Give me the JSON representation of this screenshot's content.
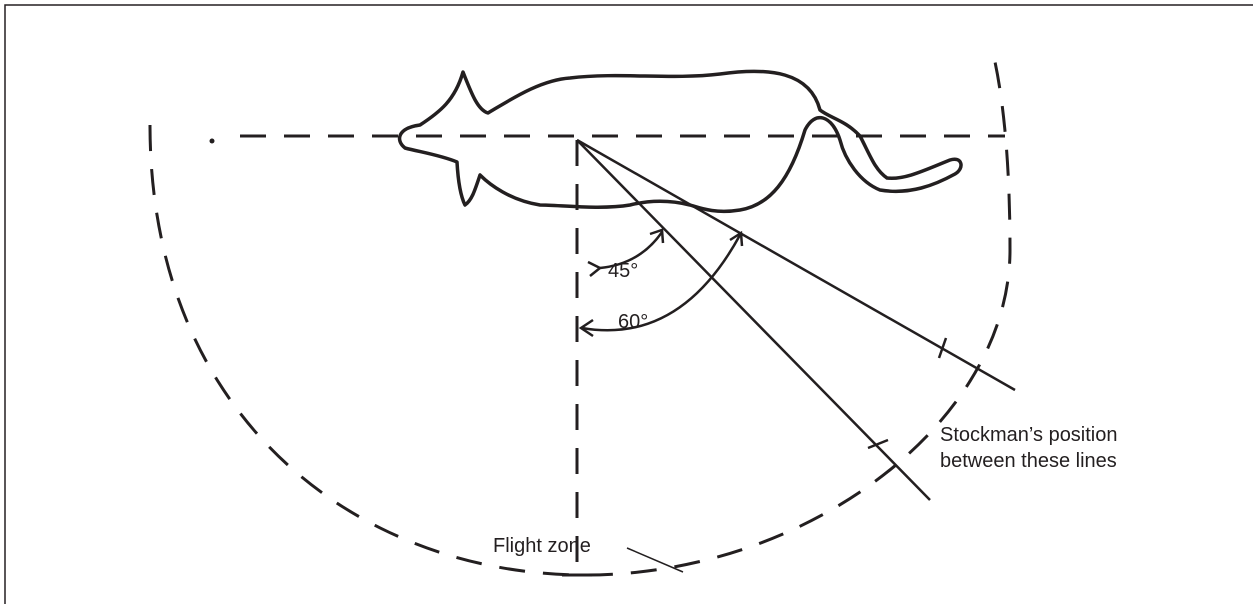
{
  "diagram": {
    "angles": [
      {
        "value": 45,
        "label": "45°"
      },
      {
        "value": 60,
        "label": "60°"
      }
    ],
    "stockman_label": {
      "line1": "Stockman’s position",
      "line2": "between these lines"
    },
    "flight_zone_label": "Flight zone",
    "colors": {
      "ink": "#231f20",
      "background": "#ffffff"
    },
    "icons": [
      "cow-outline-icon",
      "eye-icon"
    ]
  }
}
